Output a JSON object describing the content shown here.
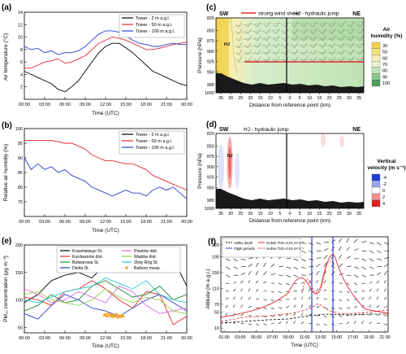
{
  "chart_data": [
    {
      "panel": "(a)",
      "type": "line",
      "ylabel": "Air temperature (°C)",
      "xlabel": "Time (UTC)",
      "x_ticks": [
        "00:00",
        "03:00",
        "06:00",
        "09:00",
        "12:00",
        "15:00",
        "18:00",
        "21:00",
        "00:00"
      ],
      "xlim": [
        0,
        24
      ],
      "ylim": [
        0,
        14
      ],
      "y_ticks": [
        2,
        4,
        6,
        8,
        10,
        12,
        14
      ],
      "legend_position": "top-right",
      "series": [
        {
          "name": "Tower - 2 m a.g.l.",
          "color": "#000000",
          "x": [
            0,
            1,
            2,
            3,
            4,
            5,
            6,
            7,
            8,
            9,
            10,
            11,
            12,
            13,
            14,
            15,
            16,
            17,
            18,
            19,
            20,
            21,
            22,
            23,
            24
          ],
          "y": [
            4.5,
            4,
            3.5,
            3,
            2.5,
            1.6,
            1.2,
            2,
            3,
            4.5,
            6,
            7.5,
            8.5,
            9,
            9,
            8.3,
            7.5,
            6.5,
            5.5,
            4.5,
            4,
            3.5,
            3,
            2.5,
            2.2
          ]
        },
        {
          "name": "Tower - 50 m a.g.l.",
          "color": "#e6262b",
          "x": [
            0,
            1,
            2,
            3,
            4,
            5,
            6,
            7,
            8,
            9,
            10,
            11,
            12,
            13,
            14,
            15,
            16,
            17,
            18,
            19,
            20,
            21,
            22,
            23,
            24
          ],
          "y": [
            5,
            5,
            5.5,
            6,
            6.2,
            6.5,
            5.8,
            6,
            6.5,
            7,
            8,
            9,
            9.5,
            10,
            9.8,
            9.5,
            9,
            8.5,
            8,
            8,
            8.2,
            8.5,
            8.8,
            9,
            9.2
          ]
        },
        {
          "name": "Tower - 100 m a.g.l.",
          "color": "#2b3ccf",
          "x": [
            0,
            1,
            2,
            3,
            4,
            5,
            6,
            7,
            8,
            9,
            10,
            11,
            12,
            13,
            14,
            15,
            16,
            17,
            18,
            19,
            20,
            21,
            22,
            23,
            24
          ],
          "y": [
            8.5,
            8,
            8.2,
            7.5,
            7.8,
            7.2,
            7.5,
            7.5,
            7.8,
            8.5,
            9.5,
            10.5,
            11,
            11,
            10.8,
            10.2,
            9.5,
            9,
            8.8,
            8.5,
            8.5,
            8.8,
            9,
            8.8,
            8.8
          ]
        }
      ]
    },
    {
      "panel": "(b)",
      "type": "line",
      "ylabel": "Relative air humidity (%)",
      "xlabel": "Time (UTC)",
      "x_ticks": [
        "00:00",
        "03:00",
        "06:00",
        "09:00",
        "12:00",
        "15:00",
        "18:00",
        "21:00",
        "00:00"
      ],
      "xlim": [
        0,
        24
      ],
      "ylim": [
        70,
        100
      ],
      "y_ticks": [
        75,
        80,
        85,
        90,
        95,
        100
      ],
      "legend_position": "top-right",
      "series": [
        {
          "name": "Tower - 2 m a.g.l.",
          "color": "#000000",
          "x": [],
          "y": []
        },
        {
          "name": "Tower - 50 m a.g.l.",
          "color": "#e6262b",
          "x": [
            0,
            2,
            4,
            6,
            7,
            8,
            9,
            10,
            11,
            12,
            13,
            14,
            15,
            16,
            17,
            18,
            19,
            20,
            21,
            22,
            23,
            24
          ],
          "y": [
            96,
            96,
            96,
            95,
            95,
            94,
            93,
            91,
            90,
            89,
            89,
            88.5,
            88,
            88,
            87,
            86,
            84,
            83,
            82,
            81,
            80,
            79
          ]
        },
        {
          "name": "Tower - 100 m a.g.l.",
          "color": "#2b3ccf",
          "x": [
            0,
            1,
            2,
            3,
            4,
            5,
            6,
            7,
            8,
            9,
            10,
            11,
            12,
            13,
            14,
            15,
            16,
            17,
            18,
            19,
            20,
            21,
            22,
            23,
            24
          ],
          "y": [
            90,
            86,
            88,
            86,
            87,
            85,
            86,
            84,
            83,
            82,
            80,
            79,
            78,
            77,
            78,
            79,
            78,
            78,
            77,
            79,
            80,
            79,
            80,
            78,
            76
          ]
        }
      ]
    },
    {
      "panel": "(c)",
      "type": "heatmap",
      "ylabel": "Pressure (hPa)",
      "xlabel": "Distance from reference point (km)",
      "y_ticks": [
        820,
        850,
        875,
        900,
        925,
        950,
        980,
        1000
      ],
      "x_ticks": [
        "35",
        "30",
        "25",
        "20",
        "15",
        "10",
        "5",
        "0",
        "5",
        "10",
        "15",
        "20",
        "25",
        "30",
        "35"
      ],
      "top_labels": {
        "left": "SW",
        "right": "NE"
      },
      "legend": {
        "line_label": "strong wind shear",
        "line_color": "#e6262b"
      },
      "annotation_center": "HJ - hydraulic jump",
      "annotation_local": "HJ",
      "colorbar": {
        "title": "Air humidity (%)",
        "ticks": [
          "30",
          "50",
          "60",
          "70",
          "80",
          "90",
          "100"
        ],
        "colors": [
          "#f2d24d",
          "#f3e47a",
          "#f4efb8",
          "#e7f2d7",
          "#bfe2b4",
          "#88c78a",
          "#4e9d5a"
        ]
      }
    },
    {
      "panel": "(d)",
      "type": "heatmap",
      "ylabel": "Pressure (hPa)",
      "xlabel": "Distance from reference point (km)",
      "y_ticks": [
        820,
        850,
        875,
        900,
        925,
        950,
        980,
        1000
      ],
      "x_ticks": [
        "35",
        "30",
        "25",
        "20",
        "15",
        "10",
        "5",
        "0",
        "5",
        "10",
        "15",
        "20",
        "25",
        "30",
        "35"
      ],
      "top_labels": {
        "left": "SW",
        "right": "NE"
      },
      "annotation_center": "HJ - hydraulic jump",
      "annotation_local": "HJ",
      "colorbar": {
        "title": "Vertical velocity (m s⁻¹)",
        "ticks": [
          "-4",
          "-2",
          "0",
          "2",
          "4"
        ],
        "colors": [
          "#1e3bd9",
          "#98a6ee",
          "#ffffff",
          "#f29090",
          "#e01f1f"
        ]
      }
    },
    {
      "panel": "(e)",
      "type": "line",
      "ylabel": "PM₁₀ concentration (μg m⁻³)",
      "xlabel": "Time (UTC)",
      "x_ticks": [
        "00:00",
        "03:00",
        "06:00",
        "09:00",
        "12:00",
        "15:00",
        "18:00",
        "21:00",
        "00:00"
      ],
      "xlim": [
        0,
        24
      ],
      "ylim": [
        40,
        200
      ],
      "y_ticks": [
        50,
        100,
        150,
        200
      ],
      "legend_position": "top",
      "series": [
        {
          "name": "Krasińskiego St.",
          "color": "#000000",
          "x": [
            0,
            2,
            4,
            6,
            8,
            10,
            12,
            14,
            16,
            18,
            20,
            22,
            23,
            24
          ],
          "y": [
            95,
            110,
            135,
            145,
            150,
            140,
            165,
            175,
            160,
            170,
            155,
            185,
            150,
            125
          ]
        },
        {
          "name": "Kurdwanów dist.",
          "color": "#e6262b",
          "x": [
            0,
            2,
            4,
            6,
            8,
            10,
            12,
            14,
            16,
            18,
            20,
            22,
            24
          ],
          "y": [
            105,
            100,
            90,
            115,
            120,
            135,
            120,
            100,
            85,
            115,
            110,
            55,
            70
          ]
        },
        {
          "name": "Bulwarowa St.",
          "color": "#1a8c2d",
          "x": [
            0,
            2,
            4,
            6,
            8,
            10,
            12,
            14,
            16,
            18,
            20,
            22,
            24
          ],
          "y": [
            80,
            90,
            110,
            95,
            100,
            125,
            135,
            120,
            105,
            110,
            125,
            100,
            110
          ]
        },
        {
          "name": "Dietla St.",
          "color": "#2b3ccf",
          "x": [
            0,
            2,
            4,
            6,
            8,
            10,
            12,
            14,
            16,
            18,
            20,
            22,
            24
          ],
          "y": [
            75,
            65,
            90,
            110,
            100,
            85,
            80,
            70,
            85,
            100,
            110,
            95,
            80
          ]
        },
        {
          "name": "Piastów dist.",
          "color": "#d76ee0",
          "x": [
            0,
            2,
            4,
            6,
            8,
            10,
            12,
            14,
            16,
            18,
            20,
            22,
            24
          ],
          "y": [
            120,
            110,
            95,
            100,
            115,
            105,
            95,
            125,
            115,
            90,
            75,
            80,
            85
          ]
        },
        {
          "name": "Wadów dist.",
          "color": "#8fd24a",
          "x": [
            0,
            2,
            4,
            6,
            8,
            10,
            12,
            14,
            16,
            18,
            20,
            22,
            24
          ],
          "y": [
            110,
            115,
            100,
            95,
            90,
            100,
            120,
            105,
            95,
            105,
            100,
            80,
            75
          ]
        },
        {
          "name": "Złoty Róg St.",
          "color": "#23c7d4",
          "x": [
            0,
            2,
            4,
            6,
            8,
            10,
            12,
            14,
            16,
            18,
            20,
            22,
            24
          ],
          "y": [
            100,
            95,
            105,
            115,
            120,
            125,
            140,
            130,
            120,
            135,
            110,
            100,
            95
          ]
        }
      ],
      "balloon": {
        "name": "Balloon meas.",
        "color": "#f0a72a",
        "x": [
          11.8,
          12.0,
          12.2,
          12.4,
          12.6,
          12.8,
          13.0,
          13.2,
          13.4,
          13.6,
          13.8,
          14.0,
          14.2,
          14.4,
          14.6
        ],
        "y": [
          72,
          74,
          70,
          75,
          71,
          73,
          69,
          72,
          70,
          74,
          68,
          71,
          69,
          72,
          70
        ]
      }
    },
    {
      "panel": "(f)",
      "type": "line",
      "ylabel": "Altitude (m a.g.l.)",
      "xlabel": "Time (UTC)",
      "x_ticks": [
        "01:00",
        "03:00",
        "05:00",
        "07:00",
        "09:00",
        "11:00",
        "13:00",
        "15:00",
        "17:00",
        "19:00",
        "21:00"
      ],
      "y_ticks": [
        10,
        50,
        70,
        110,
        150,
        190,
        220
      ],
      "legend_position": "top-left",
      "legend": [
        {
          "name": "Valley depth",
          "style": "dashed",
          "color": "#000000"
        },
        {
          "name": "Flight periods",
          "style": "solid",
          "color": "#2b3ccf"
        },
        {
          "name": "Isoline TKE=0.01 m² s⁻²",
          "style": "solid",
          "color": "#e6262b"
        },
        {
          "name": "Isoline TKE=0.04 m² s⁻²",
          "style": "dashed",
          "color": "#e6262b"
        }
      ]
    }
  ],
  "panel_labels": [
    "(a)",
    "(b)",
    "(c)",
    "(d)",
    "(e)",
    "(f)"
  ]
}
